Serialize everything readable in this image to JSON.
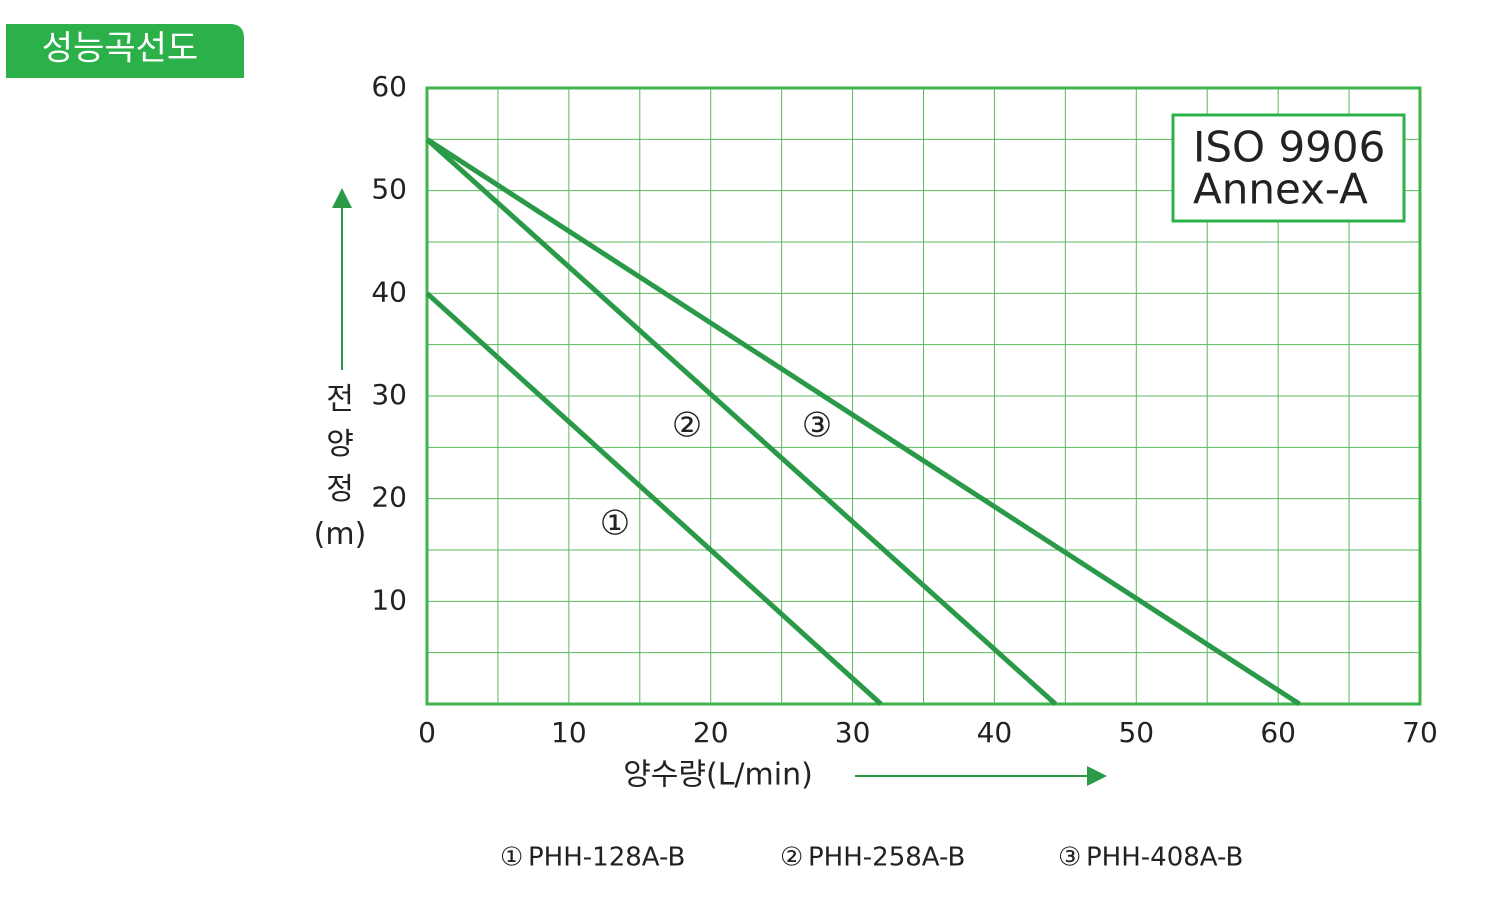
{
  "chart_data": {
    "type": "line",
    "title": "성능곡선도",
    "xlabel": "양수량(L/min)",
    "ylabel": "전양정(m)",
    "annotations": [
      "ISO 9906",
      "Annex-A"
    ],
    "xlim": [
      0,
      70
    ],
    "xticks": [
      0,
      10,
      20,
      30,
      40,
      50,
      60,
      70
    ],
    "xminorticks": [
      5,
      15,
      25,
      35,
      45,
      55,
      65
    ],
    "ylim": [
      0,
      60
    ],
    "yticks": [
      10,
      20,
      30,
      40,
      50,
      60
    ],
    "yminorticks": [
      5,
      15,
      25,
      35,
      45,
      55
    ],
    "grid": true,
    "series": [
      {
        "name": "PHH-128A-B",
        "label": "①",
        "color": "#2a9a48",
        "x": [
          0,
          32
        ],
        "values": [
          40,
          0
        ]
      },
      {
        "name": "PHH-258A-B",
        "label": "②",
        "color": "#2a9a48",
        "x": [
          0,
          44.3
        ],
        "values": [
          55,
          0
        ]
      },
      {
        "name": "PHH-408A-B",
        "label": "③",
        "color": "#2a9a48",
        "x": [
          0,
          61.5
        ],
        "values": [
          55,
          0
        ]
      }
    ]
  }
}
